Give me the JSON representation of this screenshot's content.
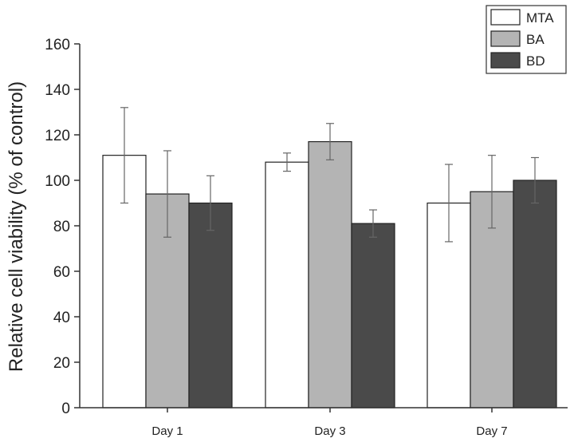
{
  "chart_data": {
    "type": "bar",
    "title": "",
    "xlabel": "",
    "ylabel": "Relative cell viability (% of control)",
    "ylim": [
      0,
      160
    ],
    "yticks": [
      0,
      20,
      40,
      60,
      80,
      100,
      120,
      140,
      160
    ],
    "categories": [
      "Day 1",
      "Day 3",
      "Day 7"
    ],
    "series": [
      {
        "name": "MTA",
        "color": "#ffffff",
        "values": [
          111,
          108,
          90
        ],
        "errors": [
          21,
          4,
          17
        ]
      },
      {
        "name": "BA",
        "color": "#b4b4b4",
        "values": [
          94,
          117,
          95
        ],
        "errors": [
          19,
          8,
          16
        ]
      },
      {
        "name": "BD",
        "color": "#4a4a4a",
        "values": [
          90,
          81,
          100
        ],
        "errors": [
          12,
          6,
          10
        ]
      }
    ],
    "legend_position": "top-right"
  }
}
